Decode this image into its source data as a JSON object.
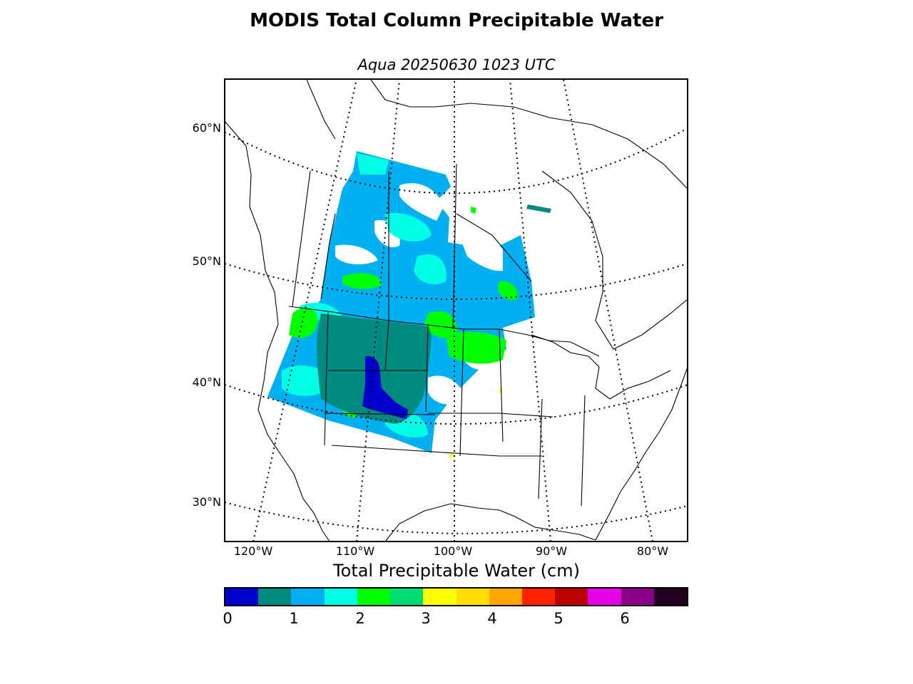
{
  "title": "MODIS Total Column Precipitable Water",
  "subtitle": "Aqua 20250630 1023 UTC",
  "map": {
    "lat_labels": [
      "60°N",
      "50°N",
      "40°N",
      "30°N"
    ],
    "lon_labels": [
      "120°W",
      "110°W",
      "100°W",
      "90°W",
      "80°W"
    ]
  },
  "colorbar": {
    "title": "Total Precipitable Water (cm)",
    "unit": "cm",
    "ticks": [
      "0",
      "1",
      "2",
      "3",
      "4",
      "5",
      "6"
    ],
    "colors": [
      "#0000cc",
      "#008b80",
      "#00b0f0",
      "#00ffe6",
      "#00ff00",
      "#00dd77",
      "#ffff00",
      "#ffdd00",
      "#ffa500",
      "#ff2200",
      "#bb0000",
      "#e600e6",
      "#880088",
      "#220022"
    ]
  }
}
